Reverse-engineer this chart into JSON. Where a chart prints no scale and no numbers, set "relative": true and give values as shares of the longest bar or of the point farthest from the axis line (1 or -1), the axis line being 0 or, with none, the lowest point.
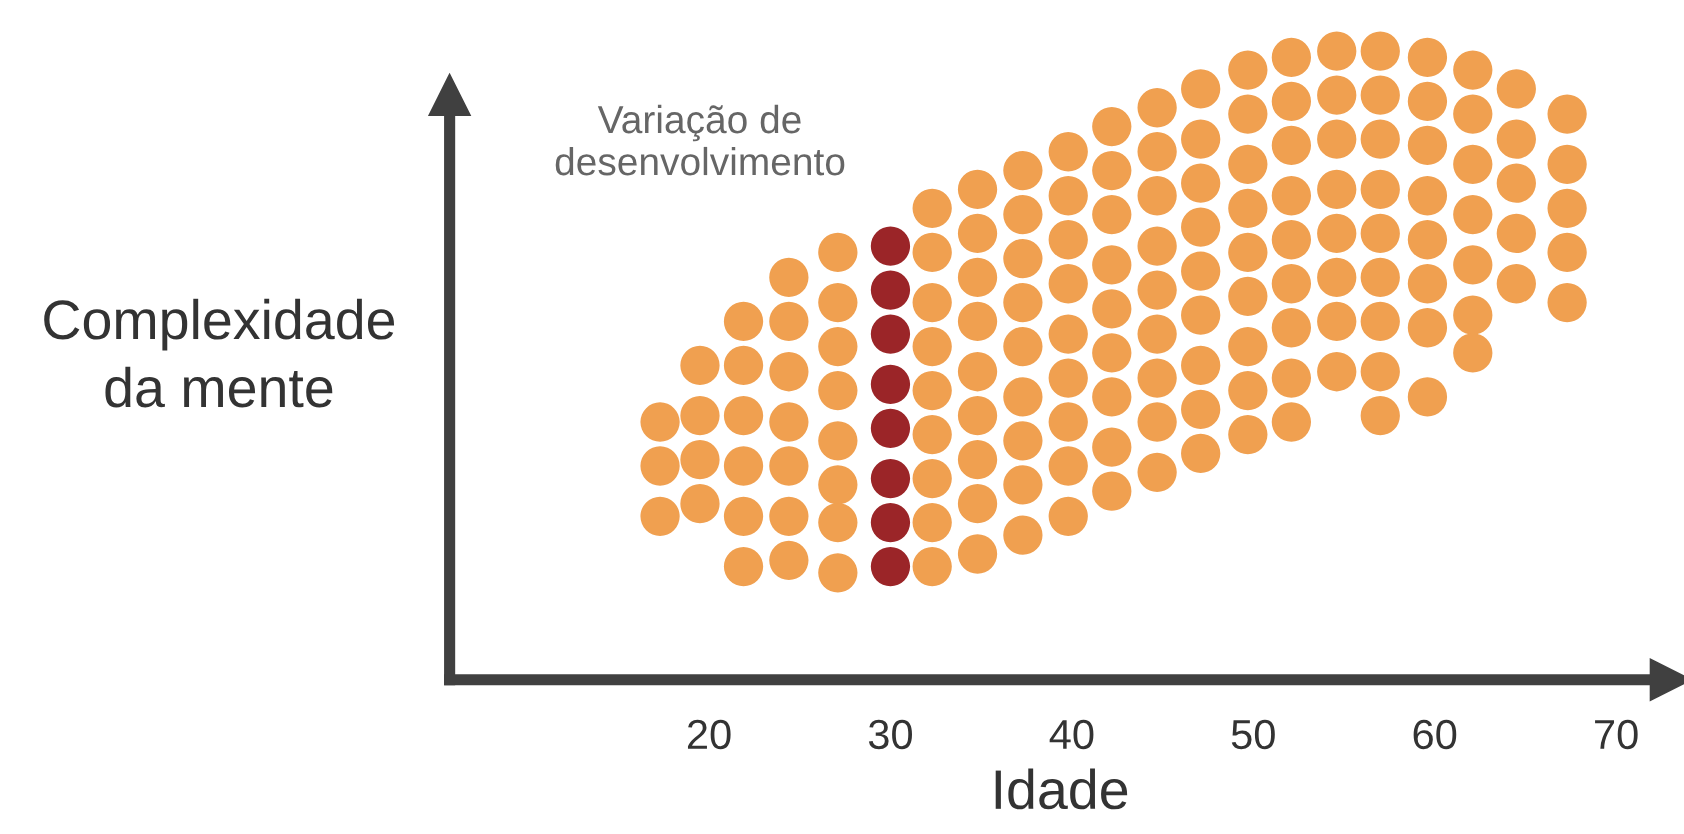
{
  "chart_data": {
    "type": "scatter",
    "relative": true,
    "xlabel": "Idade",
    "ylabel": "Complexidade\nda mente",
    "xlim": [
      5.7,
      73
    ],
    "xticks": [
      20,
      30,
      40,
      50,
      60,
      70
    ],
    "grid": false,
    "legend": false,
    "marker": "circle",
    "annotations": [
      "Variação de\ndesenvolvimento"
    ],
    "series": [
      {
        "color": "#f0a050",
        "x": [
          17.3,
          17.3,
          17.3
        ],
        "values": [
          0.41,
          0.34,
          0.26
        ]
      },
      {
        "color": "#f0a050",
        "x": [
          19.5,
          19.5,
          19.5,
          19.5
        ],
        "values": [
          0.5,
          0.42,
          0.35,
          0.28
        ]
      },
      {
        "color": "#f0a050",
        "x": [
          21.9,
          21.9,
          21.9,
          21.9,
          21.9,
          21.9
        ],
        "values": [
          0.57,
          0.5,
          0.42,
          0.34,
          0.26,
          0.18
        ]
      },
      {
        "color": "#f0a050",
        "x": [
          24.4,
          24.4,
          24.4,
          24.4,
          24.4,
          24.4,
          24.4
        ],
        "values": [
          0.64,
          0.57,
          0.49,
          0.41,
          0.34,
          0.26,
          0.19
        ]
      },
      {
        "color": "#f0a050",
        "x": [
          27.1,
          27.1,
          27.1,
          27.1,
          27.1,
          27.1,
          27.1,
          27.1
        ],
        "values": [
          0.68,
          0.6,
          0.53,
          0.46,
          0.38,
          0.31,
          0.25,
          0.17
        ]
      },
      {
        "color": "#9b2528",
        "x": [
          30,
          30,
          30,
          30,
          30,
          30,
          30,
          30
        ],
        "values": [
          0.69,
          0.62,
          0.55,
          0.47,
          0.4,
          0.32,
          0.25,
          0.18
        ]
      },
      {
        "color": "#f0a050",
        "x": [
          32.3,
          32.3,
          32.3,
          32.3,
          32.3,
          32.3,
          32.3,
          32.3,
          32.3
        ],
        "values": [
          0.75,
          0.68,
          0.6,
          0.53,
          0.46,
          0.39,
          0.32,
          0.25,
          0.18
        ]
      },
      {
        "color": "#f0a050",
        "x": [
          34.8,
          34.8,
          34.8,
          34.8,
          34.8,
          34.8,
          34.8,
          34.8,
          34.8
        ],
        "values": [
          0.78,
          0.71,
          0.64,
          0.57,
          0.49,
          0.42,
          0.35,
          0.28,
          0.2
        ]
      },
      {
        "color": "#f0a050",
        "x": [
          37.3,
          37.3,
          37.3,
          37.3,
          37.3,
          37.3,
          37.3,
          37.3,
          37.3
        ],
        "values": [
          0.81,
          0.74,
          0.67,
          0.6,
          0.53,
          0.45,
          0.38,
          0.31,
          0.23
        ]
      },
      {
        "color": "#f0a050",
        "x": [
          39.8,
          39.8,
          39.8,
          39.8,
          39.8,
          39.8,
          39.8,
          39.8,
          39.8
        ],
        "values": [
          0.84,
          0.77,
          0.7,
          0.63,
          0.55,
          0.48,
          0.41,
          0.34,
          0.26
        ]
      },
      {
        "color": "#f0a050",
        "x": [
          42.2,
          42.2,
          42.2,
          42.2,
          42.2,
          42.2,
          42.2,
          42.2,
          42.2
        ],
        "values": [
          0.88,
          0.81,
          0.74,
          0.66,
          0.59,
          0.52,
          0.45,
          0.37,
          0.3
        ]
      },
      {
        "color": "#f0a050",
        "x": [
          44.7,
          44.7,
          44.7,
          44.7,
          44.7,
          44.7,
          44.7,
          44.7,
          44.7
        ],
        "values": [
          0.91,
          0.84,
          0.77,
          0.69,
          0.62,
          0.55,
          0.48,
          0.41,
          0.33
        ]
      },
      {
        "color": "#f0a050",
        "x": [
          47.1,
          47.1,
          47.1,
          47.1,
          47.1,
          47.1,
          47.1,
          47.1,
          47.1
        ],
        "values": [
          0.94,
          0.86,
          0.79,
          0.72,
          0.65,
          0.58,
          0.5,
          0.43,
          0.36
        ]
      },
      {
        "color": "#f0a050",
        "x": [
          49.7,
          49.7,
          49.7,
          49.7,
          49.7,
          49.7,
          49.7,
          49.7,
          49.7
        ],
        "values": [
          0.97,
          0.9,
          0.82,
          0.75,
          0.68,
          0.61,
          0.53,
          0.46,
          0.39
        ]
      },
      {
        "color": "#f0a050",
        "x": [
          52.1,
          52.1,
          52.1,
          52.1,
          52.1,
          52.1,
          52.1,
          52.1,
          52.1
        ],
        "values": [
          0.99,
          0.92,
          0.85,
          0.77,
          0.7,
          0.63,
          0.56,
          0.48,
          0.41
        ]
      },
      {
        "color": "#f0a050",
        "x": [
          54.6,
          54.6,
          54.6,
          54.6,
          54.6,
          54.6,
          54.6,
          54.6
        ],
        "values": [
          1.0,
          0.93,
          0.86,
          0.78,
          0.71,
          0.64,
          0.57,
          0.49
        ]
      },
      {
        "color": "#f0a050",
        "x": [
          57,
          57,
          57,
          57,
          57,
          57,
          57,
          57,
          57
        ],
        "values": [
          1.0,
          0.93,
          0.86,
          0.78,
          0.71,
          0.64,
          0.57,
          0.49,
          0.42
        ]
      },
      {
        "color": "#f0a050",
        "x": [
          59.6,
          59.6,
          59.6,
          59.6,
          59.6,
          59.6,
          59.6,
          59.6
        ],
        "values": [
          0.99,
          0.92,
          0.85,
          0.77,
          0.7,
          0.63,
          0.56,
          0.45
        ]
      },
      {
        "color": "#f0a050",
        "x": [
          62.1,
          62.1,
          62.1,
          62.1,
          62.1,
          62.1,
          62.1
        ],
        "values": [
          0.97,
          0.9,
          0.82,
          0.74,
          0.66,
          0.58,
          0.52
        ]
      },
      {
        "color": "#f0a050",
        "x": [
          64.5,
          64.5,
          64.5,
          64.5,
          64.5
        ],
        "values": [
          0.94,
          0.86,
          0.79,
          0.71,
          0.63
        ]
      },
      {
        "color": "#f0a050",
        "x": [
          67.3,
          67.3,
          67.3,
          67.3,
          67.3
        ],
        "values": [
          0.9,
          0.82,
          0.75,
          0.68,
          0.6
        ]
      }
    ]
  }
}
